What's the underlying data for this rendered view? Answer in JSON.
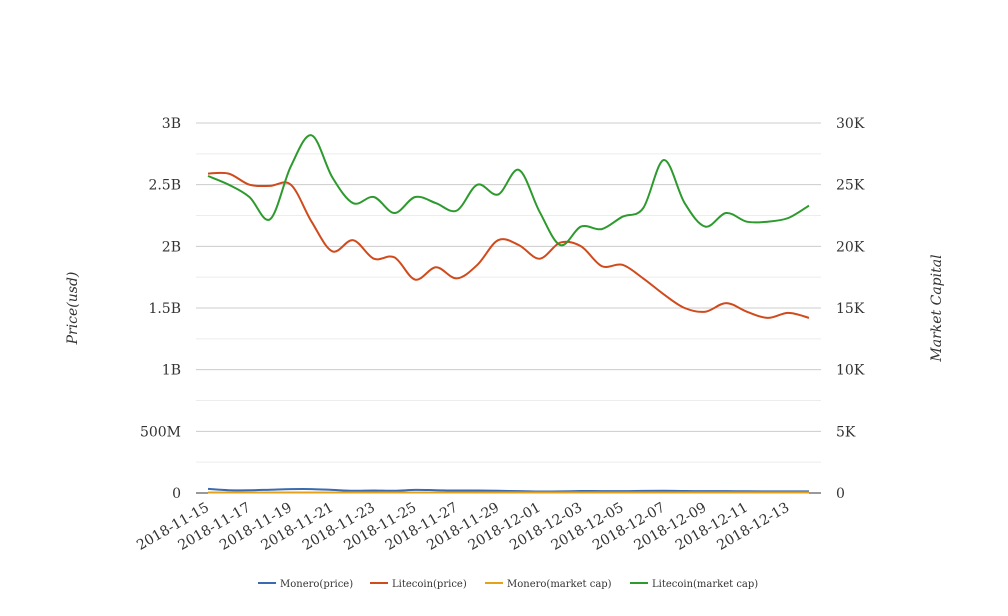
{
  "chart_data": {
    "type": "line",
    "title": "",
    "ylabel_left": "Price(usd)",
    "ylabel_right": "Market Capital",
    "x": [
      "2018-11-15",
      "2018-11-16",
      "2018-11-17",
      "2018-11-18",
      "2018-11-19",
      "2018-11-20",
      "2018-11-21",
      "2018-11-22",
      "2018-11-23",
      "2018-11-24",
      "2018-11-25",
      "2018-11-26",
      "2018-11-27",
      "2018-11-28",
      "2018-11-29",
      "2018-11-30",
      "2018-12-01",
      "2018-12-02",
      "2018-12-03",
      "2018-12-04",
      "2018-12-05",
      "2018-12-06",
      "2018-12-07",
      "2018-12-08",
      "2018-12-09",
      "2018-12-10",
      "2018-12-11",
      "2018-12-12",
      "2018-12-13",
      "2018-12-14"
    ],
    "x_tick_labels": [
      "2018-11-15",
      "2018-11-17",
      "2018-11-19",
      "2018-11-21",
      "2018-11-23",
      "2018-11-25",
      "2018-11-27",
      "2018-11-29",
      "2018-12-01",
      "2018-12-03",
      "2018-12-05",
      "2018-12-07",
      "2018-12-09",
      "2018-12-11",
      "2018-12-13"
    ],
    "y_left": {
      "ylim": [
        0,
        3000000000
      ],
      "ticks": [
        "0",
        "500M",
        "1B",
        "1.5B",
        "2B",
        "2.5B",
        "3B"
      ]
    },
    "y_right": {
      "ylim": [
        0,
        30000
      ],
      "ticks": [
        "0",
        "5K",
        "10K",
        "15K",
        "20K",
        "25K",
        "30K"
      ]
    },
    "grid": true,
    "legend_position": "bottom",
    "series": [
      {
        "name": "Monero(price)",
        "axis": "left",
        "color": "#3a6ab0",
        "values": [
          33000000,
          23000000,
          22000000,
          27000000,
          32000000,
          32000000,
          25000000,
          18000000,
          20000000,
          18000000,
          25000000,
          23000000,
          20000000,
          20000000,
          18000000,
          15000000,
          12000000,
          13000000,
          16000000,
          15000000,
          15000000,
          17000000,
          18000000,
          16000000,
          15000000,
          15000000,
          14000000,
          13000000,
          13000000,
          13000000
        ]
      },
      {
        "name": "Litecoin(price)",
        "axis": "left",
        "color": "#d04a1c",
        "values": [
          2590000000,
          2590000000,
          2500000000,
          2490000000,
          2500000000,
          2200000000,
          1960000000,
          2050000000,
          1900000000,
          1910000000,
          1730000000,
          1830000000,
          1740000000,
          1850000000,
          2050000000,
          2010000000,
          1900000000,
          2030000000,
          2000000000,
          1840000000,
          1850000000,
          1740000000,
          1610000000,
          1500000000,
          1470000000,
          1540000000,
          1470000000,
          1420000000,
          1460000000,
          1420000000
        ]
      },
      {
        "name": "Monero(market cap)",
        "axis": "right",
        "color": "#e3a21a",
        "values": [
          40,
          40,
          40,
          40,
          40,
          40,
          40,
          40,
          40,
          40,
          40,
          40,
          40,
          40,
          40,
          40,
          40,
          40,
          40,
          40,
          40,
          40,
          40,
          40,
          40,
          40,
          40,
          40,
          40,
          40
        ]
      },
      {
        "name": "Litecoin(market cap)",
        "axis": "right",
        "color": "#2d9a2d",
        "values": [
          25700,
          25000,
          24000,
          22200,
          26500,
          29000,
          25600,
          23500,
          24000,
          22700,
          24000,
          23500,
          22900,
          25000,
          24200,
          26200,
          22800,
          20100,
          21600,
          21400,
          22400,
          23100,
          27000,
          23500,
          21600,
          22700,
          22000,
          22000,
          22300,
          23300
        ]
      }
    ]
  }
}
